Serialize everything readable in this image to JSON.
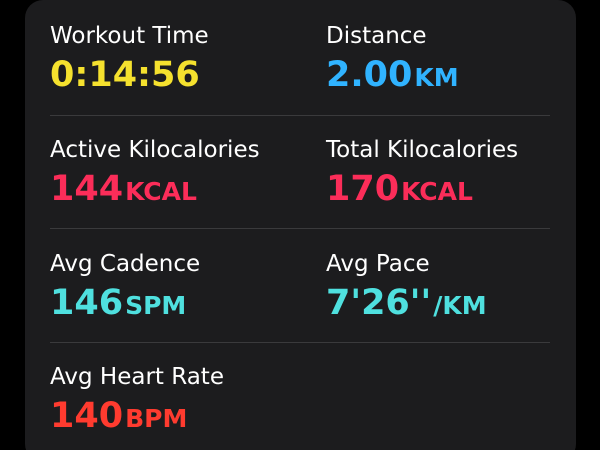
{
  "colors": {
    "workout_time": "#f5e12e",
    "distance": "#30b3ff",
    "calories": "#fb2d59",
    "cadence": "#4fe0df",
    "pace": "#4fe0df",
    "heart_rate": "#ff3b2f"
  },
  "metrics": {
    "workout_time": {
      "label": "Workout Time",
      "value": "0:14:56",
      "unit": ""
    },
    "distance": {
      "label": "Distance",
      "value": "2.00",
      "unit": "KM"
    },
    "active_kcal": {
      "label": "Active Kilocalories",
      "value": "144",
      "unit": "KCAL"
    },
    "total_kcal": {
      "label": "Total Kilocalories",
      "value": "170",
      "unit": "KCAL"
    },
    "avg_cadence": {
      "label": "Avg Cadence",
      "value": "146",
      "unit": "SPM"
    },
    "avg_pace": {
      "label": "Avg Pace",
      "value": "7'26''",
      "unit": "/KM"
    },
    "avg_heart_rate": {
      "label": "Avg Heart Rate",
      "value": "140",
      "unit": "BPM"
    }
  }
}
